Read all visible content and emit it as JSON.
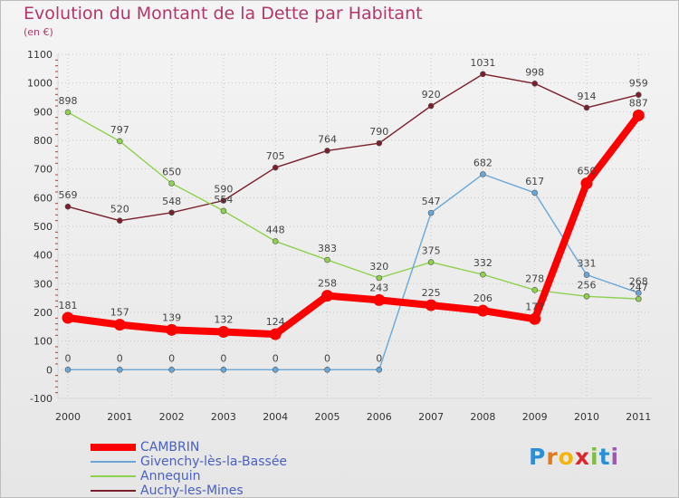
{
  "header": {
    "title": "Evolution du Montant de la Dette par Habitant",
    "subtitle": "(en €)"
  },
  "logo": {
    "letters": [
      "P",
      "r",
      "o",
      "x",
      "i",
      "t",
      "i"
    ],
    "colors": [
      "#2b8fd6",
      "#e07a1a",
      "#f2b50f",
      "#d9282f",
      "#7cbf3c",
      "#2b8fd6",
      "#9b59b6"
    ]
  },
  "colors": {
    "title": "#b4366b",
    "axis_text": "#333333",
    "grid": "#c8c8c8"
  },
  "chart_data": {
    "type": "line",
    "title": "Evolution du Montant de la Dette par Habitant",
    "ylabel": "(en €)",
    "x": [
      "2000",
      "2001",
      "2002",
      "2003",
      "2004",
      "2005",
      "2006",
      "2007",
      "2008",
      "2009",
      "2010",
      "2011"
    ],
    "y_ticks": [
      -100,
      0,
      100,
      200,
      300,
      400,
      500,
      600,
      700,
      800,
      900,
      1000,
      1100
    ],
    "ylim": [
      -100,
      1100
    ],
    "grid": true,
    "legend_position": "bottom-left",
    "series": [
      {
        "name": "Auchy-les-Mines",
        "color": "#7a1f2b",
        "values": [
          569,
          520,
          548,
          590,
          705,
          764,
          790,
          920,
          1031,
          998,
          914,
          959
        ],
        "labels": [
          "569",
          "520",
          "548",
          "590",
          "705",
          "764",
          "790",
          "920",
          "1031",
          "998",
          "914",
          "959"
        ]
      },
      {
        "name": "Annequin",
        "color": "#8fd14f",
        "values": [
          898,
          797,
          650,
          554,
          448,
          383,
          320,
          375,
          332,
          278,
          256,
          247
        ],
        "labels": [
          "898",
          "797",
          "650",
          "554",
          "448",
          "383",
          "320",
          "375",
          "332",
          "278",
          "256",
          "247"
        ]
      },
      {
        "name": "Givenchy-lès-la-Bassée",
        "color": "#6aa6d6",
        "values": [
          0,
          0,
          0,
          0,
          0,
          0,
          0,
          547,
          682,
          617,
          331,
          268
        ],
        "labels": [
          "0",
          "0",
          "0",
          "0",
          "0",
          "0",
          "0",
          "547",
          "682",
          "617",
          "331",
          "268"
        ]
      },
      {
        "name": "CAMBRIN",
        "color": "#ff0000",
        "values": [
          181,
          157,
          139,
          132,
          124,
          258,
          243,
          225,
          206,
          177,
          650,
          887
        ],
        "labels": [
          "181",
          "157",
          "139",
          "132",
          "124",
          "258",
          "243",
          "225",
          "206",
          "177",
          "650",
          "887"
        ]
      }
    ],
    "legend": [
      "CAMBRIN",
      "Givenchy-lès-la-Bassée",
      "Annequin",
      "Auchy-les-Mines"
    ]
  }
}
